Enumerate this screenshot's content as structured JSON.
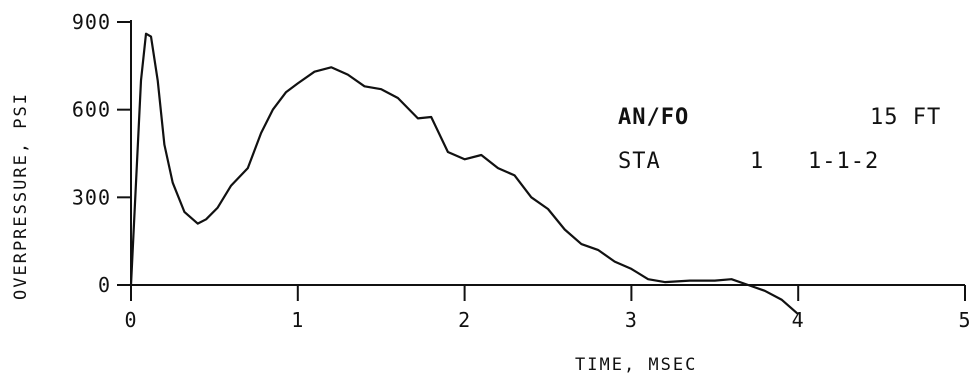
{
  "chart_data": {
    "type": "line",
    "title": "",
    "xlabel": "TIME, MSEC",
    "ylabel": "OVERPRESSURE, PSI",
    "xlim": [
      0,
      5
    ],
    "ylim": [
      0,
      900
    ],
    "x_ticks": [
      "0",
      "1",
      "2",
      "3",
      "4",
      "5"
    ],
    "y_ticks": [
      "0",
      "300",
      "600",
      "900"
    ],
    "y_tick_values": [
      0,
      300,
      600,
      900
    ],
    "x_tick_values": [
      0,
      1,
      2,
      3,
      4,
      5
    ],
    "grid": false,
    "annotations": {
      "row1_left": "AN/FO",
      "row1_right": "15 FT",
      "row2_left": "STA",
      "row2_mid": "1",
      "row2_right": "1-1-2"
    },
    "series": [
      {
        "values": [
          [
            0.0,
            0
          ],
          [
            0.03,
            350
          ],
          [
            0.06,
            700
          ],
          [
            0.09,
            860
          ],
          [
            0.12,
            850
          ],
          [
            0.16,
            700
          ],
          [
            0.2,
            480
          ],
          [
            0.25,
            350
          ],
          [
            0.32,
            250
          ],
          [
            0.4,
            210
          ],
          [
            0.45,
            225
          ],
          [
            0.52,
            265
          ],
          [
            0.6,
            340
          ],
          [
            0.7,
            400
          ],
          [
            0.78,
            520
          ],
          [
            0.85,
            600
          ],
          [
            0.93,
            660
          ],
          [
            1.0,
            690
          ],
          [
            1.1,
            730
          ],
          [
            1.2,
            745
          ],
          [
            1.3,
            720
          ],
          [
            1.4,
            680
          ],
          [
            1.5,
            670
          ],
          [
            1.6,
            640
          ],
          [
            1.72,
            570
          ],
          [
            1.8,
            575
          ],
          [
            1.9,
            455
          ],
          [
            2.0,
            430
          ],
          [
            2.1,
            445
          ],
          [
            2.2,
            400
          ],
          [
            2.3,
            375
          ],
          [
            2.4,
            300
          ],
          [
            2.5,
            260
          ],
          [
            2.6,
            190
          ],
          [
            2.7,
            140
          ],
          [
            2.8,
            120
          ],
          [
            2.9,
            80
          ],
          [
            3.0,
            55
          ],
          [
            3.1,
            20
          ],
          [
            3.2,
            10
          ],
          [
            3.35,
            15
          ],
          [
            3.5,
            15
          ],
          [
            3.6,
            20
          ],
          [
            3.7,
            0
          ],
          [
            3.8,
            -20
          ],
          [
            3.9,
            -50
          ],
          [
            4.0,
            -100
          ]
        ]
      }
    ]
  }
}
